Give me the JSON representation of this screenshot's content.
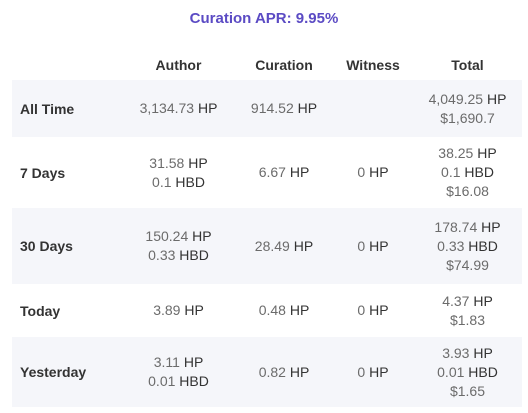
{
  "title": "Curation APR: 9.95%",
  "columns": [
    "Author",
    "Curation",
    "Witness",
    "Total"
  ],
  "rows": [
    {
      "label": "All Time",
      "author": [
        {
          "n": "3,134.73",
          "u": "HP"
        }
      ],
      "curation": [
        {
          "n": "914.52",
          "u": "HP"
        }
      ],
      "witness": [],
      "total": [
        {
          "n": "4,049.25",
          "u": "HP"
        },
        {
          "n": "$1,690.7",
          "u": ""
        }
      ]
    },
    {
      "label": "7 Days",
      "author": [
        {
          "n": "31.58",
          "u": "HP"
        },
        {
          "n": "0.1",
          "u": "HBD"
        }
      ],
      "curation": [
        {
          "n": "6.67",
          "u": "HP"
        }
      ],
      "witness": [
        {
          "n": "0",
          "u": "HP"
        }
      ],
      "total": [
        {
          "n": "38.25",
          "u": "HP"
        },
        {
          "n": "0.1",
          "u": "HBD"
        },
        {
          "n": "$16.08",
          "u": ""
        }
      ]
    },
    {
      "label": "30 Days",
      "author": [
        {
          "n": "150.24",
          "u": "HP"
        },
        {
          "n": "0.33",
          "u": "HBD"
        }
      ],
      "curation": [
        {
          "n": "28.49",
          "u": "HP"
        }
      ],
      "witness": [
        {
          "n": "0",
          "u": "HP"
        }
      ],
      "total": [
        {
          "n": "178.74",
          "u": "HP"
        },
        {
          "n": "0.33",
          "u": "HBD"
        },
        {
          "n": "$74.99",
          "u": ""
        }
      ]
    },
    {
      "label": "Today",
      "author": [
        {
          "n": "3.89",
          "u": "HP"
        }
      ],
      "curation": [
        {
          "n": "0.48",
          "u": "HP"
        }
      ],
      "witness": [
        {
          "n": "0",
          "u": "HP"
        }
      ],
      "total": [
        {
          "n": "4.37",
          "u": "HP"
        },
        {
          "n": "$1.83",
          "u": ""
        }
      ]
    },
    {
      "label": "Yesterday",
      "author": [
        {
          "n": "3.11",
          "u": "HP"
        },
        {
          "n": "0.01",
          "u": "HBD"
        }
      ],
      "curation": [
        {
          "n": "0.82",
          "u": "HP"
        }
      ],
      "witness": [
        {
          "n": "0",
          "u": "HP"
        }
      ],
      "total": [
        {
          "n": "3.93",
          "u": "HP"
        },
        {
          "n": "0.01",
          "u": "HBD"
        },
        {
          "n": "$1.65",
          "u": ""
        }
      ]
    }
  ]
}
